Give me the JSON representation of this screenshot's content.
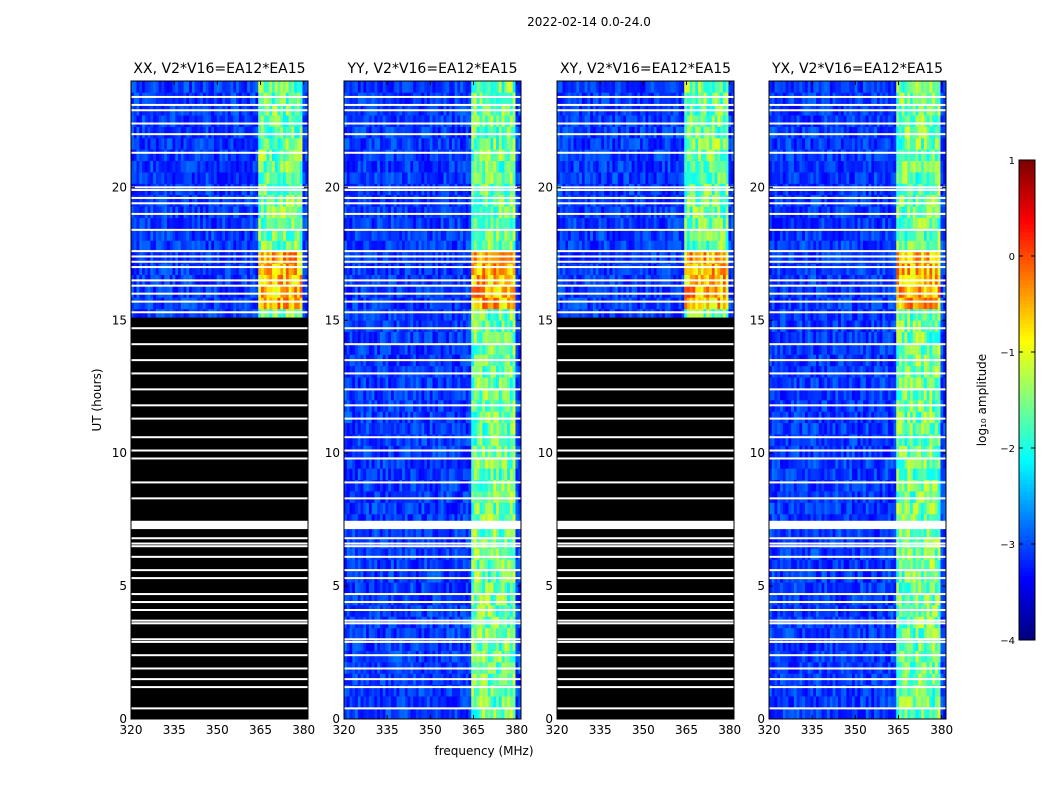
{
  "figure": {
    "suptitle": "2022-02-14 0.0-24.0"
  },
  "chart_data": {
    "type": "heatmap",
    "xlabel": "frequency (MHz)",
    "ylabel": "UT (hours)",
    "xlim": [
      320,
      381.5
    ],
    "ylim": [
      0,
      24
    ],
    "xticks": [
      "320",
      "335",
      "350",
      "365",
      "380"
    ],
    "yticks": [
      "0",
      "5",
      "10",
      "15",
      "20"
    ],
    "xtick_values": [
      320,
      335,
      350,
      365,
      380
    ],
    "ytick_values": [
      0,
      5,
      10,
      15,
      20
    ],
    "rfi_band_mhz": [
      364,
      380
    ],
    "panels": [
      {
        "title": "XX, V2*V16=EA12*EA15",
        "blank_until_hours": 15.1
      },
      {
        "title": "YY, V2*V16=EA12*EA15",
        "blank_until_hours": 0
      },
      {
        "title": "XY, V2*V16=EA12*EA15",
        "blank_until_hours": 15.1
      },
      {
        "title": "YX, V2*V16=EA12*EA15",
        "blank_until_hours": 0
      }
    ],
    "colorbar": {
      "label": "log₁₀ amplitude",
      "range": [
        -4,
        1
      ],
      "ticks": [
        "1",
        "0",
        "−1",
        "−2",
        "−3",
        "−4"
      ],
      "tick_values": [
        1,
        0,
        -1,
        -2,
        -3,
        -4
      ]
    },
    "flagged_hours": [
      0.4,
      1.2,
      1.5,
      1.9,
      2.4,
      2.9,
      3.0,
      3.6,
      3.7,
      4.1,
      4.4,
      4.7,
      5.3,
      5.6,
      6.1,
      6.5,
      6.6,
      6.8,
      7.2,
      7.3,
      7.4,
      8.3,
      8.9,
      9.8,
      10.1,
      10.6,
      11.3,
      11.8,
      12.4,
      13.0,
      13.5,
      14.1,
      14.7,
      15.3,
      15.7,
      16.0,
      16.3,
      16.5,
      17.0,
      17.2,
      17.4,
      17.6,
      18.4,
      19.0,
      19.4,
      19.6,
      19.9,
      20.0,
      21.3,
      22.0,
      22.4,
      22.9,
      23.1,
      23.4
    ]
  }
}
